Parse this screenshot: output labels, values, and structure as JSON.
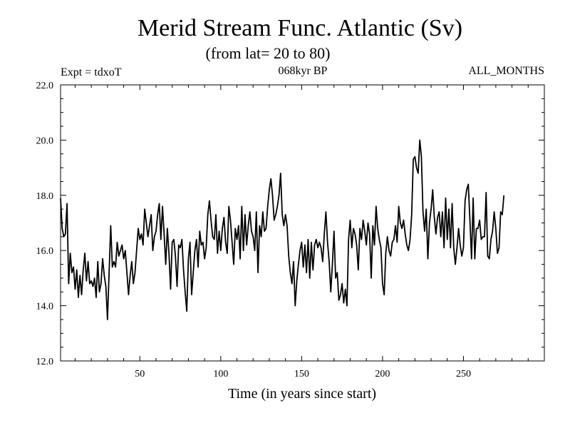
{
  "chart_data": {
    "type": "line",
    "title": "Merid Stream Func. Atlantic (Sv)",
    "subtitle": "(from lat= 20 to 80)",
    "experiment": "Expt = tdxoT",
    "period": "068kyr BP",
    "months": "ALL_MONTHS",
    "xlabel": "Time (in years since start)",
    "ylabel": "",
    "xlim": [
      1,
      300
    ],
    "ylim": [
      12.0,
      22.0
    ],
    "x_ticks": [
      50,
      100,
      150,
      200,
      250
    ],
    "x_tick_labels": [
      "50",
      "100",
      "150",
      "200",
      "250"
    ],
    "y_ticks": [
      12.0,
      14.0,
      16.0,
      18.0,
      20.0,
      22.0
    ],
    "y_tick_labels": [
      "12.0",
      "14.0",
      "16.0",
      "18.0",
      "20.0",
      "22.0"
    ],
    "grid": false,
    "series": [
      {
        "name": "Merid Stream Func. Atlantic",
        "color": "#000000",
        "x_start": 1,
        "x_step": 1,
        "values": [
          17.9,
          16.8,
          16.5,
          16.6,
          17.7,
          14.8,
          15.9,
          15.2,
          15.4,
          14.6,
          15.3,
          14.3,
          15.1,
          14.4,
          15.3,
          15.9,
          14.9,
          15.6,
          14.8,
          14.9,
          14.7,
          15.0,
          14.3,
          15.6,
          14.5,
          14.8,
          15.7,
          15.1,
          14.7,
          13.5,
          15.2,
          16.9,
          15.4,
          15.6,
          15.4,
          16.3,
          15.8,
          16.0,
          16.2,
          15.7,
          16.0,
          15.2,
          14.4,
          15.1,
          15.6,
          14.8,
          15.2,
          16.0,
          16.8,
          16.4,
          16.6,
          16.2,
          17.5,
          17.0,
          16.5,
          16.9,
          17.3,
          16.0,
          16.5,
          16.7,
          17.3,
          17.7,
          16.4,
          17.6,
          16.6,
          15.5,
          16.8,
          15.9,
          14.6,
          16.3,
          16.4,
          15.8,
          14.7,
          16.2,
          16.1,
          16.4,
          15.3,
          14.5,
          13.8,
          15.7,
          16.3,
          14.4,
          15.2,
          16.0,
          16.4,
          15.4,
          16.7,
          16.2,
          16.3,
          15.7,
          16.1,
          17.3,
          17.8,
          17.1,
          16.5,
          16.4,
          17.3,
          15.9,
          16.7,
          16.0,
          16.8,
          17.2,
          16.3,
          15.9,
          17.6,
          17.1,
          16.3,
          15.5,
          16.8,
          16.4,
          16.9,
          15.7,
          17.6,
          16.0,
          17.3,
          16.2,
          16.9,
          17.4,
          16.7,
          16.5,
          16.0,
          17.4,
          15.2,
          16.9,
          16.5,
          17.4,
          16.7,
          16.8,
          17.6,
          18.2,
          18.6,
          18.0,
          17.1,
          17.3,
          17.6,
          18.0,
          18.8,
          17.3,
          16.9,
          17.3,
          16.9,
          15.8,
          15.2,
          14.8,
          15.6,
          14.0,
          14.9,
          15.5,
          16.0,
          16.3,
          15.4,
          16.2,
          15.2,
          16.4,
          15.0,
          16.3,
          15.3,
          16.2,
          16.4,
          16.1,
          16.3,
          16.1,
          15.6,
          16.6,
          17.4,
          16.3,
          15.6,
          14.5,
          15.5,
          16.7,
          15.0,
          15.2,
          14.2,
          14.4,
          14.8,
          14.1,
          14.6,
          14.0,
          16.4,
          17.1,
          16.1,
          16.8,
          16.6,
          16.2,
          15.3,
          16.8,
          16.4,
          17.1,
          16.7,
          16.2,
          17.0,
          16.6,
          15.0,
          16.9,
          16.2,
          17.6,
          16.8,
          16.4,
          16.1,
          14.8,
          14.4,
          15.9,
          16.5,
          16.0,
          15.8,
          16.3,
          16.4,
          16.9,
          16.3,
          17.6,
          17.0,
          16.8,
          17.1,
          16.6,
          16.2,
          16.0,
          16.4,
          17.3,
          19.3,
          19.4,
          19.0,
          18.8,
          20.0,
          19.4,
          17.4,
          16.7,
          17.5,
          15.7,
          17.0,
          17.5,
          18.2,
          17.2,
          16.6,
          17.2,
          17.4,
          16.5,
          17.4,
          16.1,
          17.9,
          16.4,
          17.5,
          16.1,
          17.7,
          16.1,
          15.5,
          16.1,
          16.8,
          16.2,
          15.8,
          16.1,
          17.8,
          18.2,
          18.4,
          17.1,
          15.7,
          17.9,
          15.7,
          16.8,
          16.8,
          17.1,
          16.4,
          16.5,
          16.5,
          18.1,
          15.8,
          15.7,
          16.4,
          16.7,
          17.4,
          16.8,
          15.9,
          16.1,
          17.4,
          17.3,
          18.0
        ]
      }
    ]
  }
}
